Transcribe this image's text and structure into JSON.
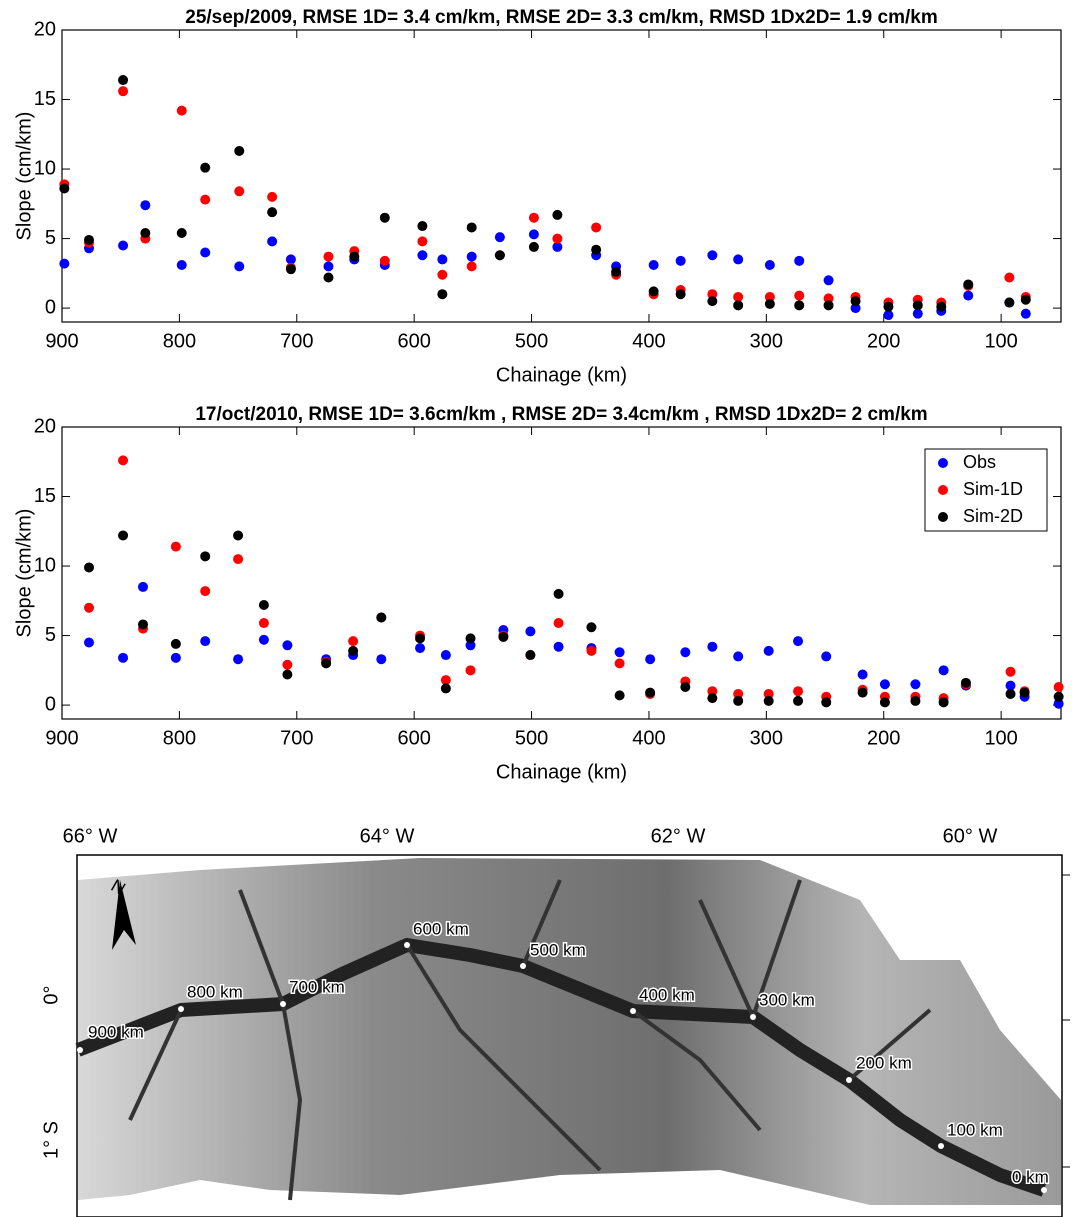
{
  "chart_data": [
    {
      "type": "scatter",
      "title": "25/sep/2009, RMSE 1D= 3.4 cm/km, RMSE 2D= 3.3 cm/km, RMSD 1Dx2D= 1.9 cm/km",
      "x_label": "Chainage (km)",
      "y_label": "Slope (cm/km)",
      "x": [
        898,
        877,
        848,
        829,
        798,
        778,
        749,
        721,
        705,
        673,
        651,
        625,
        593,
        576,
        551,
        527,
        498,
        478,
        445,
        428,
        396,
        373,
        346,
        324,
        297,
        272,
        247,
        224,
        196,
        171,
        151,
        128,
        93,
        79
      ],
      "series": [
        {
          "color": "#0000ff",
          "values": [
            3.2,
            4.3,
            4.5,
            7.4,
            3.1,
            4.0,
            3.0,
            4.8,
            3.5,
            3.0,
            3.5,
            3.1,
            3.8,
            3.5,
            3.7,
            5.1,
            5.3,
            4.4,
            3.8,
            3.0,
            3.1,
            3.4,
            3.8,
            3.5,
            3.1,
            3.4,
            2.0,
            0.0,
            -0.5,
            -0.4,
            -0.2,
            0.9,
            0.4,
            -0.4
          ]
        },
        {
          "color": "#ff0000",
          "values": [
            8.9,
            4.7,
            15.6,
            5.0,
            14.2,
            7.8,
            8.4,
            8.0,
            2.9,
            3.7,
            4.1,
            3.4,
            4.8,
            2.4,
            3.0,
            3.8,
            6.5,
            5.0,
            5.8,
            2.4,
            1.0,
            1.3,
            1.0,
            0.8,
            0.8,
            0.9,
            0.7,
            0.8,
            0.4,
            0.6,
            0.4,
            1.6,
            2.2,
            0.8
          ]
        },
        {
          "color": "#000000",
          "values": [
            8.6,
            4.9,
            16.4,
            5.4,
            5.4,
            10.1,
            11.3,
            6.9,
            2.8,
            2.2,
            3.7,
            6.5,
            5.9,
            1.0,
            5.8,
            3.8,
            4.4,
            6.7,
            4.2,
            2.6,
            1.2,
            1.0,
            0.5,
            0.2,
            0.3,
            0.2,
            0.2,
            0.5,
            0.1,
            0.2,
            0.1,
            1.7,
            0.4,
            0.6
          ]
        }
      ],
      "xlim": [
        900,
        49
      ],
      "xticks": [
        900,
        800,
        700,
        600,
        500,
        400,
        300,
        200,
        100
      ],
      "ylim": [
        -1,
        20
      ],
      "yticks": [
        0,
        5,
        10,
        15,
        20
      ]
    },
    {
      "type": "scatter",
      "title": "17/oct/2010, RMSE 1D= 3.6cm/km , RMSE 2D= 3.4cm/km , RMSD 1Dx2D= 2 cm/km",
      "x_label": "Chainage (km)",
      "y_label": "Slope (cm/km)",
      "x": [
        877,
        848,
        831,
        803,
        778,
        750,
        728,
        708,
        675,
        652,
        628,
        595,
        573,
        552,
        524,
        501,
        477,
        449,
        425,
        399,
        369,
        346,
        324,
        298,
        273,
        249,
        218,
        199,
        173,
        149,
        130,
        92,
        80,
        51
      ],
      "series": [
        {
          "name": "Obs",
          "color": "#0000ff",
          "values": [
            4.5,
            3.4,
            8.5,
            3.4,
            4.6,
            3.3,
            4.7,
            4.3,
            3.3,
            3.6,
            3.3,
            4.1,
            3.6,
            4.3,
            5.4,
            5.3,
            4.2,
            4.1,
            3.8,
            3.3,
            3.8,
            4.2,
            3.5,
            3.9,
            4.6,
            3.5,
            2.2,
            1.5,
            1.5,
            2.5,
            1.4,
            1.4,
            0.6,
            0.1
          ]
        },
        {
          "name": "Sim-1D",
          "color": "#ff0000",
          "values": [
            7.0,
            17.6,
            5.5,
            11.4,
            8.2,
            10.5,
            5.9,
            2.9,
            3.1,
            4.6,
            6.3,
            5.0,
            1.8,
            2.5,
            5.0,
            3.6,
            5.9,
            3.9,
            3.0,
            0.8,
            1.7,
            1.0,
            0.8,
            0.8,
            1.0,
            0.6,
            1.1,
            0.6,
            0.6,
            0.5,
            1.5,
            2.4,
            1.0,
            1.3
          ]
        },
        {
          "name": "Sim-2D",
          "color": "#000000",
          "values": [
            9.9,
            12.2,
            5.8,
            4.4,
            10.7,
            12.2,
            7.2,
            2.2,
            3.0,
            3.9,
            6.3,
            4.8,
            1.2,
            4.8,
            4.9,
            3.6,
            8.0,
            5.6,
            0.7,
            0.9,
            1.3,
            0.5,
            0.3,
            0.3,
            0.3,
            0.2,
            0.9,
            0.2,
            0.3,
            0.2,
            1.6,
            0.8,
            0.9,
            0.6
          ]
        }
      ],
      "xlim": [
        900,
        49
      ],
      "xticks": [
        900,
        800,
        700,
        600,
        500,
        400,
        300,
        200,
        100
      ],
      "ylim": [
        -1,
        20
      ],
      "yticks": [
        0,
        5,
        10,
        15,
        20
      ],
      "legend": "upper right"
    }
  ],
  "map": {
    "lon_labels": [
      "66° W",
      "64° W",
      "62° W",
      "60° W"
    ],
    "lat_labels": [
      "0°",
      "1° S"
    ],
    "north": "N",
    "km_labels": [
      "900 km",
      "800 km",
      "700 km",
      "600 km",
      "500 km",
      "400 km",
      "300 km",
      "200 km",
      "100 km",
      "0 km"
    ]
  }
}
